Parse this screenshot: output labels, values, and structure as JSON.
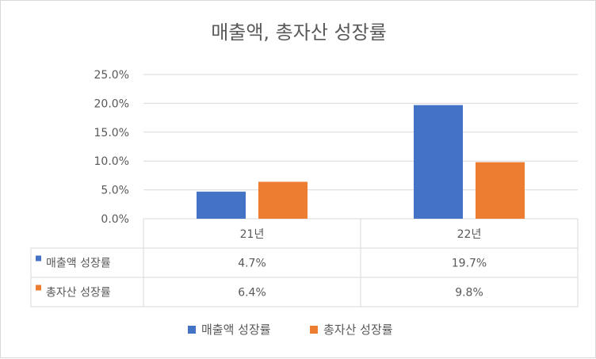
{
  "chart_data": {
    "type": "bar",
    "title": "매출액, 총자산 성장률",
    "categories": [
      "21년",
      "22년"
    ],
    "series": [
      {
        "name": "매출액 성장률",
        "values": [
          4.7,
          19.7
        ],
        "labels": [
          "4.7%",
          "19.7%"
        ],
        "color": "#4472C4"
      },
      {
        "name": "총자산 성장률",
        "values": [
          6.4,
          9.8
        ],
        "labels": [
          "6.4%",
          "9.8%"
        ],
        "color": "#ED7D31"
      }
    ],
    "ylim": [
      0,
      25
    ],
    "yticks": [
      0,
      5,
      10,
      15,
      20,
      25
    ],
    "ytick_labels": [
      "0.0%",
      "5.0%",
      "10.0%",
      "15.0%",
      "20.0%",
      "25.0%"
    ],
    "grid": true,
    "data_table": true,
    "legend_position": "bottom"
  }
}
